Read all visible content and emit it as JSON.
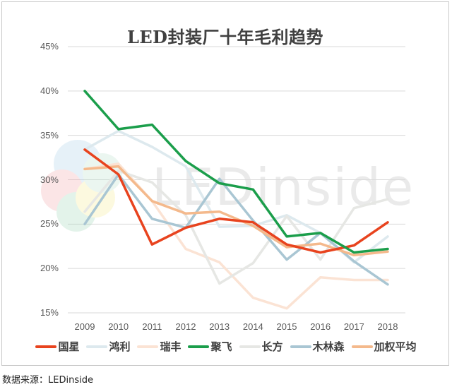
{
  "chart": {
    "title": "LED封装厂十年毛利趋势",
    "source": "数据来源：LEDinside",
    "watermark": "LEDinside"
  },
  "colors": {
    "国星": "#e8431e",
    "鸿利": "#dde9ee",
    "瑞丰": "#fbe3d4",
    "聚飞": "#1b9e4b",
    "长方": "#e6e7e4",
    "木林森": "#a9c6d3",
    "加权平均": "#f4b98c"
  },
  "chart_data": {
    "type": "line",
    "title": "LED封装厂十年毛利趋势",
    "xlabel": "",
    "ylabel": "",
    "categories": [
      "2009",
      "2010",
      "2011",
      "2012",
      "2013",
      "2014",
      "2015",
      "2016",
      "2017",
      "2018"
    ],
    "yticks": [
      "45%",
      "40%",
      "35%",
      "30%",
      "25%",
      "20%",
      "15%"
    ],
    "ylim": [
      15,
      45
    ],
    "grid": true,
    "legend_position": "bottom",
    "series": [
      {
        "name": "国星",
        "values": [
          33.4,
          30.6,
          22.7,
          24.6,
          25.6,
          25.2,
          22.7,
          21.8,
          22.6,
          25.2
        ]
      },
      {
        "name": "鸿利",
        "values": [
          33.4,
          35.5,
          33.7,
          31.5,
          24.7,
          24.8,
          26.0,
          24.0,
          20.7,
          23.6
        ]
      },
      {
        "name": "瑞丰",
        "values": [
          31.2,
          31.8,
          27.6,
          22.2,
          20.7,
          16.7,
          15.5,
          19.0,
          18.7,
          18.7
        ]
      },
      {
        "name": "聚飞",
        "values": [
          40.0,
          35.7,
          36.2,
          32.1,
          29.6,
          28.9,
          23.6,
          24.0,
          21.8,
          22.2
        ]
      },
      {
        "name": "长方",
        "values": [
          26.4,
          31.0,
          29.7,
          26.0,
          18.3,
          20.6,
          25.9,
          21.0,
          26.8,
          27.8
        ]
      },
      {
        "name": "木林森",
        "values": [
          25.0,
          30.6,
          25.6,
          24.6,
          30.1,
          25.4,
          21.0,
          24.0,
          20.8,
          18.2
        ]
      },
      {
        "name": "加权平均",
        "values": [
          31.2,
          31.5,
          27.6,
          26.2,
          26.4,
          24.8,
          22.4,
          22.8,
          21.5,
          21.9
        ]
      }
    ]
  },
  "legend": [
    {
      "label": "国星",
      "color": "#e8431e"
    },
    {
      "label": "鸿利",
      "color": "#dde9ee"
    },
    {
      "label": "瑞丰",
      "color": "#fbe3d4"
    },
    {
      "label": "聚飞",
      "color": "#1b9e4b"
    },
    {
      "label": "长方",
      "color": "#e6e7e4"
    },
    {
      "label": "木林森",
      "color": "#a9c6d3"
    },
    {
      "label": "加权平均",
      "color": "#f4b98c"
    }
  ]
}
